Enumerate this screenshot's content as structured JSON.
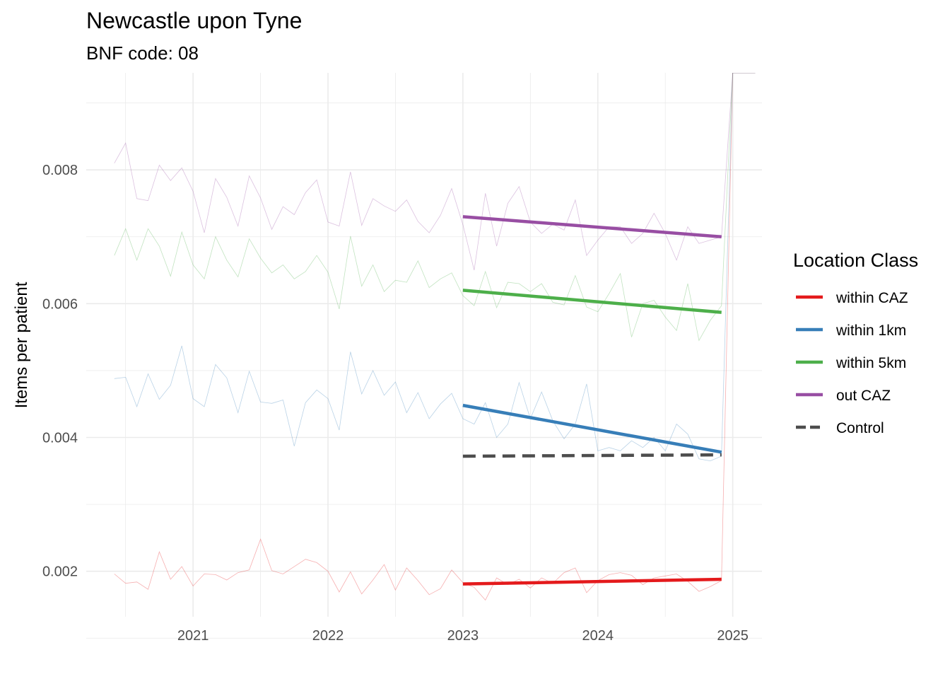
{
  "chart_data": {
    "type": "line",
    "title": "Newcastle upon Tyne",
    "subtitle": "BNF code: 08",
    "xlabel": "",
    "ylabel": "Items per patient",
    "x_ticks": [
      "2021",
      "2022",
      "2023",
      "2024",
      "2025"
    ],
    "y_ticks": [
      "0.002",
      "0.004",
      "0.006",
      "0.008"
    ],
    "x_range": [
      "2020-04",
      "2025-03"
    ],
    "y_range": [
      0.00132,
      0.00945
    ],
    "grid": true,
    "legend": {
      "title": "Location Class",
      "position": "right",
      "entries": [
        {
          "label": "within CAZ",
          "color": "#E41A1C",
          "dashed": false
        },
        {
          "label": "within 1km",
          "color": "#377EB8",
          "dashed": false
        },
        {
          "label": "within 5km",
          "color": "#4DAF4A",
          "dashed": false
        },
        {
          "label": "out CAZ",
          "color": "#984EA3",
          "dashed": false
        },
        {
          "label": "Control",
          "color": "#4D4D4D",
          "dashed": true
        }
      ]
    },
    "monthly_series": [
      {
        "key": "within CAZ",
        "color": "#E41A1C",
        "x": [
          "2020-06",
          "2020-07",
          "2020-08",
          "2020-09",
          "2020-10",
          "2020-11",
          "2020-12",
          "2021-01",
          "2021-02",
          "2021-03",
          "2021-04",
          "2021-05",
          "2021-06",
          "2021-07",
          "2021-08",
          "2021-09",
          "2021-10",
          "2021-11",
          "2021-12",
          "2022-01",
          "2022-02",
          "2022-03",
          "2022-04",
          "2022-05",
          "2022-06",
          "2022-07",
          "2022-08",
          "2022-09",
          "2022-10",
          "2022-11",
          "2022-12",
          "2023-01",
          "2023-02",
          "2023-03",
          "2023-04",
          "2023-05",
          "2023-06",
          "2023-07",
          "2023-08",
          "2023-09",
          "2023-10",
          "2023-11",
          "2023-12",
          "2024-01",
          "2024-02",
          "2024-03",
          "2024-04",
          "2024-05",
          "2024-06",
          "2024-07",
          "2024-08",
          "2024-09",
          "2024-10",
          "2024-11",
          "2024-12",
          "2025-01",
          "2025-02",
          "2025-03"
        ],
        "y": [
          0.00196,
          0.00182,
          0.00184,
          0.00173,
          0.00229,
          0.00188,
          0.00207,
          0.00178,
          0.00196,
          0.00195,
          0.00187,
          0.00198,
          0.00202,
          0.00248,
          0.00201,
          0.00196,
          0.00207,
          0.00218,
          0.00213,
          0.002,
          0.00169,
          0.00199,
          0.00166,
          0.00187,
          0.0021,
          0.00172,
          0.00205,
          0.00186,
          0.00165,
          0.00174,
          0.00202,
          0.00183,
          0.00176,
          0.00157,
          0.0019,
          0.0018,
          0.00188,
          0.00175,
          0.0019,
          0.00182,
          0.00198,
          0.00205,
          0.00168,
          0.00186,
          0.00195,
          0.00198,
          0.00194,
          0.0018,
          0.0019,
          0.00193,
          0.00196,
          0.00185,
          0.0017,
          0.00177,
          0.00186,
          0.00945,
          0.00945,
          0.00945
        ]
      },
      {
        "key": "within 1km",
        "color": "#377EB8",
        "x": [
          "2020-06",
          "2020-07",
          "2020-08",
          "2020-09",
          "2020-10",
          "2020-11",
          "2020-12",
          "2021-01",
          "2021-02",
          "2021-03",
          "2021-04",
          "2021-05",
          "2021-06",
          "2021-07",
          "2021-08",
          "2021-09",
          "2021-10",
          "2021-11",
          "2021-12",
          "2022-01",
          "2022-02",
          "2022-03",
          "2022-04",
          "2022-05",
          "2022-06",
          "2022-07",
          "2022-08",
          "2022-09",
          "2022-10",
          "2022-11",
          "2022-12",
          "2023-01",
          "2023-02",
          "2023-03",
          "2023-04",
          "2023-05",
          "2023-06",
          "2023-07",
          "2023-08",
          "2023-09",
          "2023-10",
          "2023-11",
          "2023-12",
          "2024-01",
          "2024-02",
          "2024-03",
          "2024-04",
          "2024-05",
          "2024-06",
          "2024-07",
          "2024-08",
          "2024-09",
          "2024-10",
          "2024-11",
          "2024-12",
          "2025-01",
          "2025-02",
          "2025-03"
        ],
        "y": [
          0.00488,
          0.0049,
          0.00446,
          0.00495,
          0.00457,
          0.00478,
          0.00537,
          0.00458,
          0.00446,
          0.00509,
          0.00489,
          0.00437,
          0.00499,
          0.00453,
          0.00451,
          0.00456,
          0.00387,
          0.00452,
          0.00471,
          0.00458,
          0.00411,
          0.00528,
          0.00465,
          0.005,
          0.00463,
          0.00483,
          0.00437,
          0.00467,
          0.00428,
          0.0045,
          0.00466,
          0.00428,
          0.0042,
          0.00452,
          0.004,
          0.0042,
          0.00482,
          0.00428,
          0.00468,
          0.00425,
          0.00398,
          0.0042,
          0.0048,
          0.0038,
          0.00385,
          0.0038,
          0.00395,
          0.00385,
          0.004,
          0.0038,
          0.0042,
          0.00405,
          0.00368,
          0.00365,
          0.00372,
          0.00945,
          0.00945,
          0.00945
        ]
      },
      {
        "key": "within 5km",
        "color": "#4DAF4A",
        "x": [
          "2020-06",
          "2020-07",
          "2020-08",
          "2020-09",
          "2020-10",
          "2020-11",
          "2020-12",
          "2021-01",
          "2021-02",
          "2021-03",
          "2021-04",
          "2021-05",
          "2021-06",
          "2021-07",
          "2021-08",
          "2021-09",
          "2021-10",
          "2021-11",
          "2021-12",
          "2022-01",
          "2022-02",
          "2022-03",
          "2022-04",
          "2022-05",
          "2022-06",
          "2022-07",
          "2022-08",
          "2022-09",
          "2022-10",
          "2022-11",
          "2022-12",
          "2023-01",
          "2023-02",
          "2023-03",
          "2023-04",
          "2023-05",
          "2023-06",
          "2023-07",
          "2023-08",
          "2023-09",
          "2023-10",
          "2023-11",
          "2023-12",
          "2024-01",
          "2024-02",
          "2024-03",
          "2024-04",
          "2024-05",
          "2024-06",
          "2024-07",
          "2024-08",
          "2024-09",
          "2024-10",
          "2024-11",
          "2024-12",
          "2025-01",
          "2025-02",
          "2025-03"
        ],
        "y": [
          0.00672,
          0.00712,
          0.00665,
          0.00712,
          0.00686,
          0.00641,
          0.00707,
          0.00658,
          0.00637,
          0.007,
          0.00665,
          0.0064,
          0.00697,
          0.00668,
          0.00646,
          0.00658,
          0.00637,
          0.00648,
          0.00672,
          0.00647,
          0.00592,
          0.00701,
          0.00626,
          0.00658,
          0.00618,
          0.00635,
          0.00632,
          0.00664,
          0.00624,
          0.00637,
          0.00646,
          0.00612,
          0.00597,
          0.00648,
          0.00594,
          0.00632,
          0.0063,
          0.00618,
          0.0063,
          0.00602,
          0.00598,
          0.00642,
          0.00595,
          0.00588,
          0.00615,
          0.00645,
          0.0055,
          0.006,
          0.00605,
          0.0058,
          0.0056,
          0.0063,
          0.00545,
          0.00575,
          0.00597,
          0.00945,
          0.00945,
          0.00945
        ]
      },
      {
        "key": "out CAZ",
        "color": "#984EA3",
        "x": [
          "2020-06",
          "2020-07",
          "2020-08",
          "2020-09",
          "2020-10",
          "2020-11",
          "2020-12",
          "2021-01",
          "2021-02",
          "2021-03",
          "2021-04",
          "2021-05",
          "2021-06",
          "2021-07",
          "2021-08",
          "2021-09",
          "2021-10",
          "2021-11",
          "2021-12",
          "2022-01",
          "2022-02",
          "2022-03",
          "2022-04",
          "2022-05",
          "2022-06",
          "2022-07",
          "2022-08",
          "2022-09",
          "2022-10",
          "2022-11",
          "2022-12",
          "2023-01",
          "2023-02",
          "2023-03",
          "2023-04",
          "2023-05",
          "2023-06",
          "2023-07",
          "2023-08",
          "2023-09",
          "2023-10",
          "2023-11",
          "2023-12",
          "2024-01",
          "2024-02",
          "2024-03",
          "2024-04",
          "2024-05",
          "2024-06",
          "2024-07",
          "2024-08",
          "2024-09",
          "2024-10",
          "2024-11",
          "2024-12",
          "2025-01",
          "2025-02",
          "2025-03"
        ],
        "y": [
          0.0081,
          0.0084,
          0.00757,
          0.00754,
          0.00807,
          0.00784,
          0.00803,
          0.00768,
          0.00706,
          0.00787,
          0.00759,
          0.00716,
          0.00791,
          0.00758,
          0.00711,
          0.00745,
          0.00733,
          0.00766,
          0.00785,
          0.00722,
          0.00716,
          0.00797,
          0.00717,
          0.00757,
          0.00746,
          0.00738,
          0.00755,
          0.00723,
          0.00706,
          0.00732,
          0.00772,
          0.00718,
          0.0065,
          0.00765,
          0.00686,
          0.0075,
          0.00775,
          0.00722,
          0.00705,
          0.00719,
          0.0071,
          0.00755,
          0.00672,
          0.00695,
          0.00715,
          0.00715,
          0.0069,
          0.00705,
          0.00735,
          0.00705,
          0.00665,
          0.00715,
          0.0069,
          0.00695,
          0.007,
          0.00945,
          0.00945,
          0.00945
        ]
      }
    ],
    "trend_lines": [
      {
        "key": "within CAZ",
        "color": "#E41A1C",
        "dashed": false,
        "x": [
          "2023-01",
          "2024-12"
        ],
        "y": [
          0.00181,
          0.00188
        ]
      },
      {
        "key": "within 1km",
        "color": "#377EB8",
        "dashed": false,
        "x": [
          "2023-01",
          "2024-12"
        ],
        "y": [
          0.00448,
          0.00378
        ]
      },
      {
        "key": "within 5km",
        "color": "#4DAF4A",
        "dashed": false,
        "x": [
          "2023-01",
          "2024-12"
        ],
        "y": [
          0.0062,
          0.00587
        ]
      },
      {
        "key": "out CAZ",
        "color": "#984EA3",
        "dashed": false,
        "x": [
          "2023-01",
          "2024-12"
        ],
        "y": [
          0.0073,
          0.007
        ]
      },
      {
        "key": "Control",
        "color": "#4D4D4D",
        "dashed": true,
        "x": [
          "2023-01",
          "2024-12"
        ],
        "y": [
          0.00372,
          0.00374
        ]
      }
    ]
  }
}
